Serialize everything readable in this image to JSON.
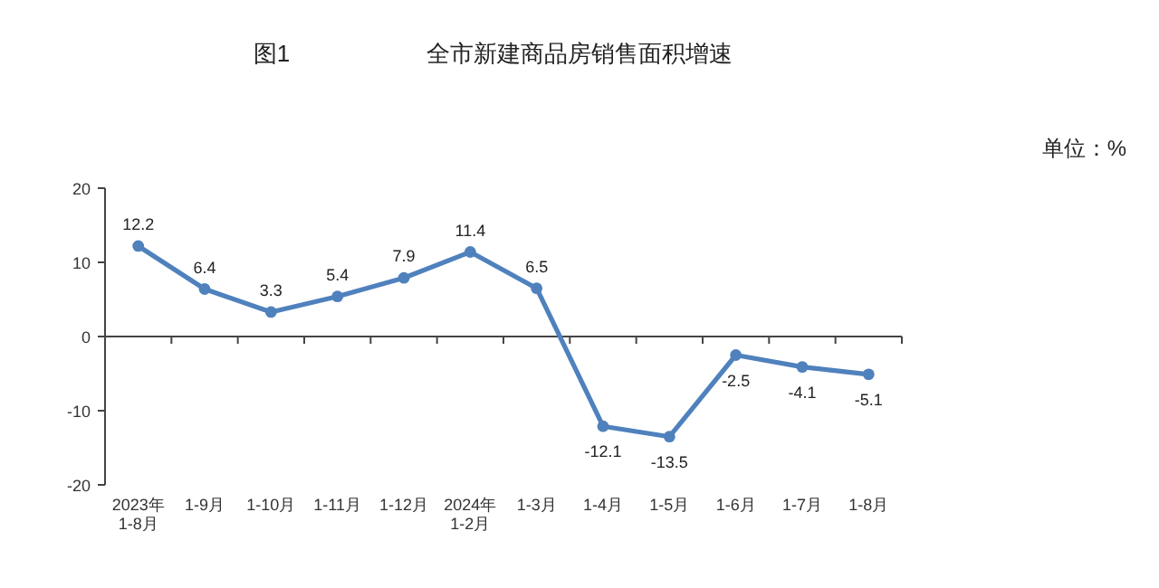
{
  "chart_data": {
    "type": "line",
    "title": "全市新建商品房销售面积增速",
    "annotations": [
      "图1",
      "单位：%"
    ],
    "categories": [
      "2023年\n1-8月",
      "1-9月",
      "1-10月",
      "1-11月",
      "1-12月",
      "2024年\n1-2月",
      "1-3月",
      "1-4月",
      "1-5月",
      "1-6月",
      "1-7月",
      "1-8月"
    ],
    "series": [
      {
        "color": "#4f81bd",
        "values": [
          12.2,
          6.4,
          3.3,
          5.4,
          7.9,
          11.4,
          6.5,
          -12.1,
          -13.5,
          -2.5,
          -4.1,
          -5.1
        ]
      }
    ],
    "ylim": [
      -20,
      20
    ],
    "yticks": [
      -20,
      -10,
      0,
      10,
      20
    ],
    "marker": "circle",
    "line_style": "solid",
    "data_labels": true
  }
}
